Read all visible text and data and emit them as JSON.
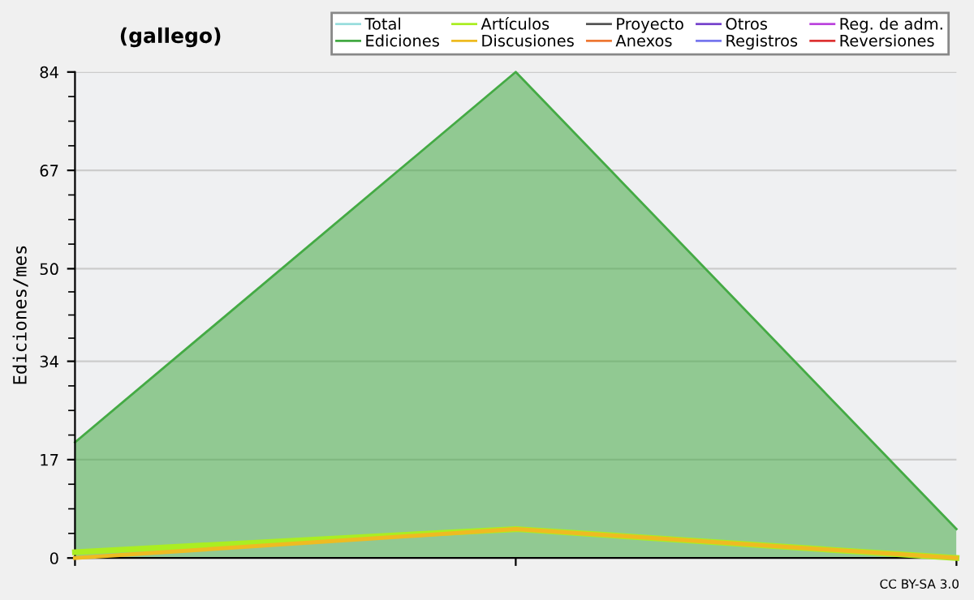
{
  "chart_data": {
    "type": "line",
    "title": "(gallego)",
    "ylabel": "Ediciones/mes",
    "categories": [
      null,
      null,
      null
    ],
    "series": [
      {
        "name": "Total",
        "color": "#99dddd",
        "values": [
          null,
          null,
          null
        ]
      },
      {
        "name": "Ediciones",
        "color": "#44aa44",
        "type": "area",
        "values": [
          20,
          84,
          5
        ]
      },
      {
        "name": "Artículos",
        "color": "#aaee22",
        "values": [
          1,
          5,
          0
        ]
      },
      {
        "name": "Discusiones",
        "color": "#eebb22",
        "values": [
          0,
          5,
          0
        ]
      },
      {
        "name": "Proyecto",
        "color": "#555555",
        "values": [
          null,
          null,
          null
        ]
      },
      {
        "name": "Anexos",
        "color": "#ee7733",
        "values": [
          null,
          null,
          null
        ]
      },
      {
        "name": "Otros",
        "color": "#7744cc",
        "values": [
          null,
          null,
          null
        ]
      },
      {
        "name": "Registros",
        "color": "#7777ee",
        "values": [
          null,
          null,
          null
        ]
      },
      {
        "name": "Reg. de adm.",
        "color": "#bb44dd",
        "values": [
          null,
          null,
          null
        ]
      },
      {
        "name": "Reversiones",
        "color": "#dd3333",
        "values": [
          null,
          null,
          null
        ]
      }
    ],
    "ylim": [
      0,
      84
    ],
    "yticks": [
      0,
      17,
      34,
      50,
      67,
      84
    ],
    "grid": "y",
    "legend": "top right",
    "annotations": [
      "CC BY-SA 3.0"
    ]
  }
}
